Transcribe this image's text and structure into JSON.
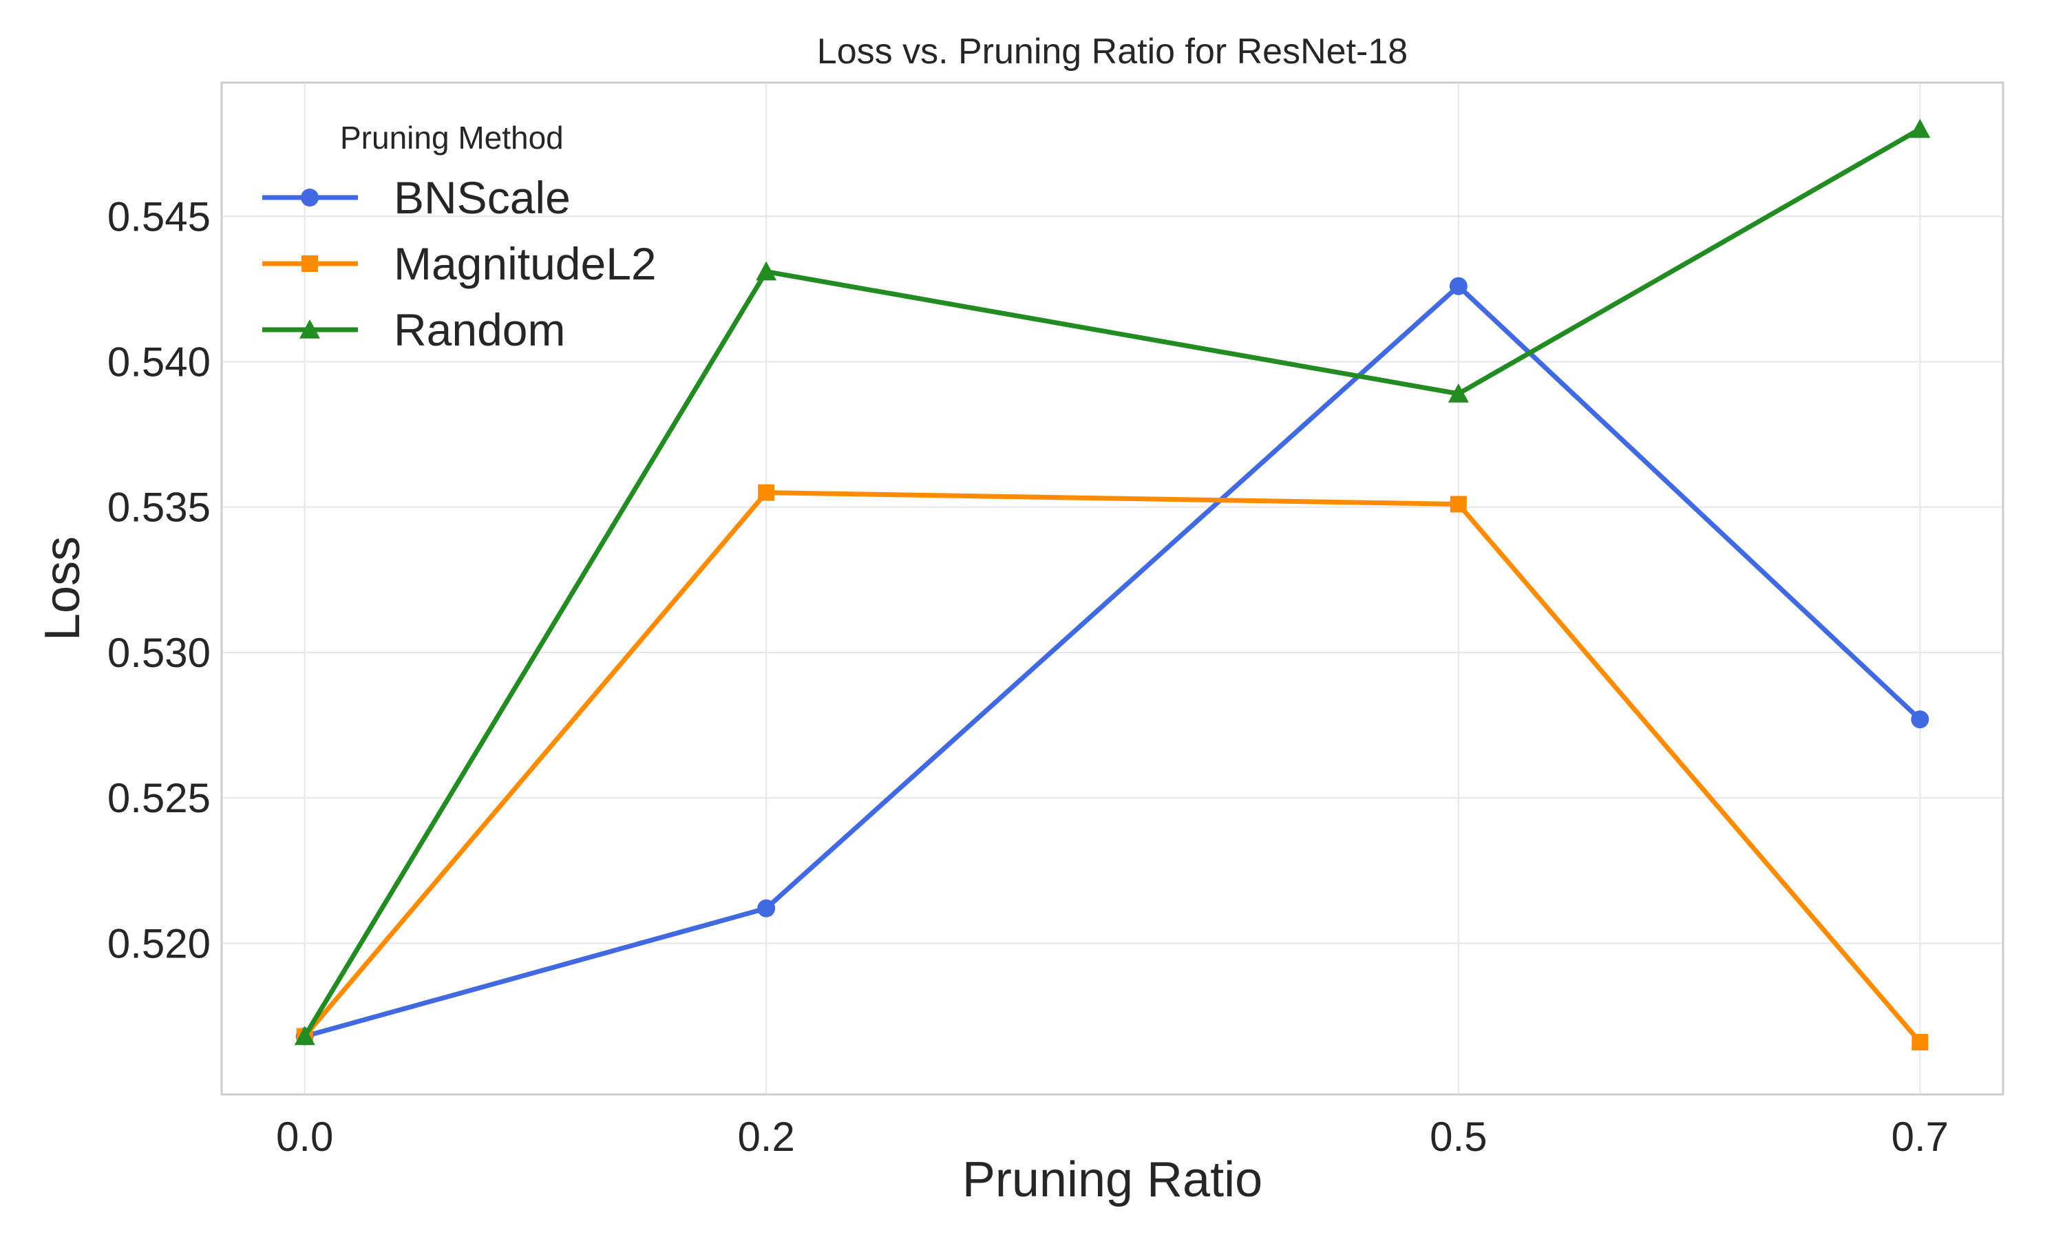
{
  "chart_data": {
    "type": "line",
    "title": "Loss vs. Pruning Ratio for ResNet-18",
    "xlabel": "Pruning Ratio",
    "ylabel": "Loss",
    "x": [
      0.0,
      0.2,
      0.5,
      0.7
    ],
    "x_tick_labels": [
      "0.0",
      "0.2",
      "0.5",
      "0.7"
    ],
    "y_ticks": [
      0.52,
      0.525,
      0.53,
      0.535,
      0.54,
      0.545
    ],
    "y_tick_labels": [
      "0.520",
      "0.525",
      "0.530",
      "0.535",
      "0.540",
      "0.545"
    ],
    "xlim": [
      -0.036,
      0.736
    ],
    "ylim": [
      0.5148,
      0.5496
    ],
    "grid": true,
    "legend": {
      "title": "Pruning Method",
      "placement": "top-left"
    },
    "series": [
      {
        "name": "BNScale",
        "values": [
          0.5168,
          0.5212,
          0.5426,
          0.5277
        ],
        "color": "#4169e1",
        "marker": "circle"
      },
      {
        "name": "MagnitudeL2",
        "values": [
          0.5168,
          0.5355,
          0.5351,
          0.5166
        ],
        "color": "#ff8c00",
        "marker": "square"
      },
      {
        "name": "Random",
        "values": [
          0.5168,
          0.5431,
          0.5389,
          0.548
        ],
        "color": "#228b22",
        "marker": "triangle"
      }
    ]
  }
}
